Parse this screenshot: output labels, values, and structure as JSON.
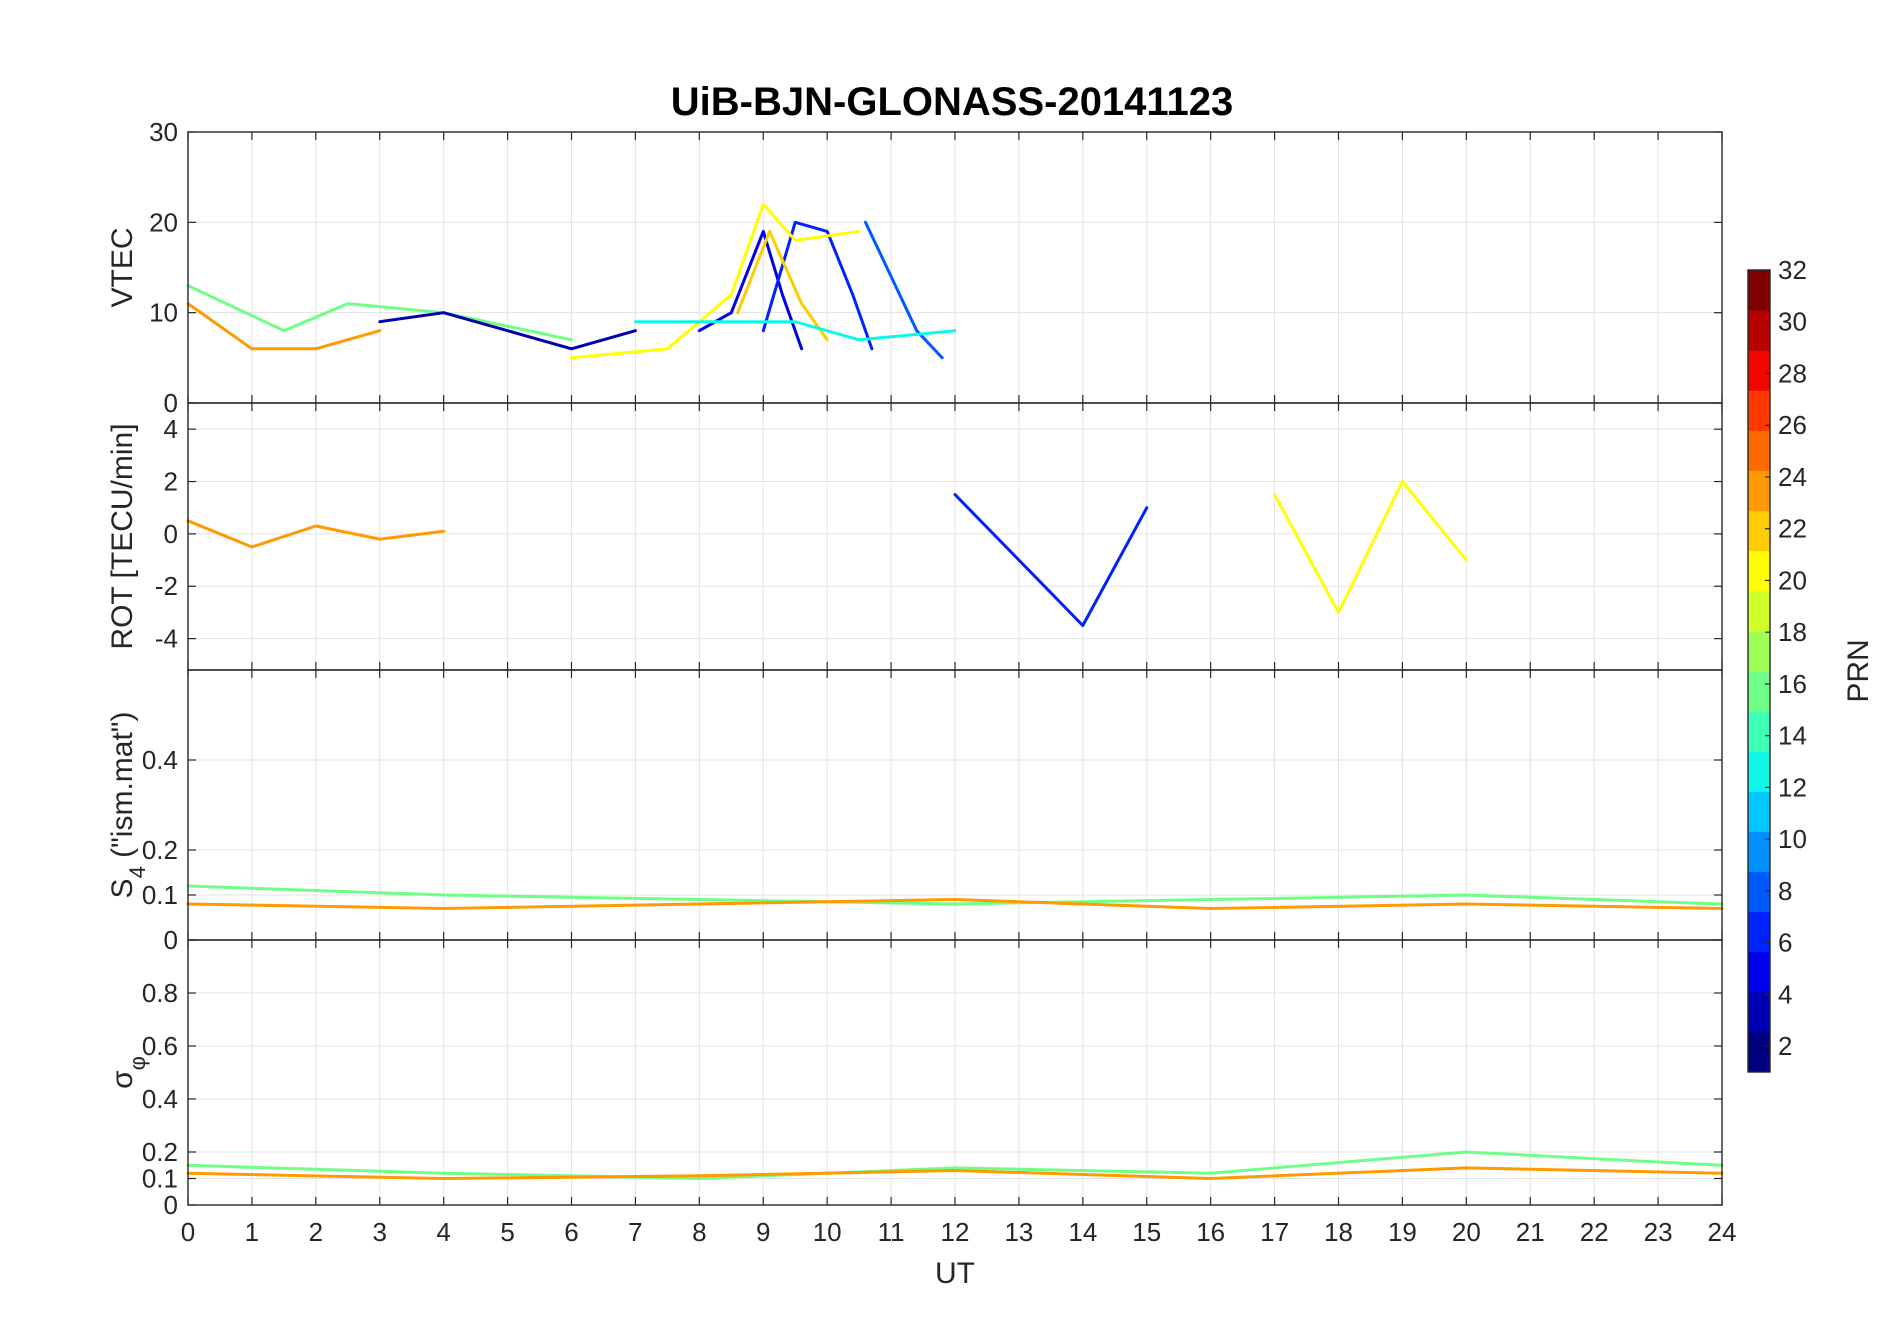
{
  "title": "UiB-BJN-GLONASS-20141123",
  "colormap": [
    "#00007f",
    "#0000b3",
    "#0000ea",
    "#0022ff",
    "#0059ff",
    "#0090ff",
    "#00c7ff",
    "#0ff8e7",
    "#3fffb7",
    "#6fff87",
    "#9fff57",
    "#cfff27",
    "#ffff00",
    "#ffcc00",
    "#ff9a00",
    "#ff6a00",
    "#ff3900",
    "#ef0700",
    "#b70000",
    "#7f0000"
  ],
  "chart_data": [
    {
      "type": "line",
      "panel": "vtec",
      "ylabel": "VTEC",
      "ylim": [
        0,
        30
      ],
      "yticks": [
        0,
        10,
        20,
        30
      ],
      "ytick_labels": [
        "0",
        "10",
        "20",
        "30"
      ],
      "xlim": [
        0,
        24
      ],
      "grid": true,
      "series": [
        {
          "prn": 4,
          "x": [
            8.0,
            8.5,
            9.0,
            9.3,
            9.6
          ],
          "y": [
            8,
            10,
            19,
            12,
            6
          ]
        },
        {
          "prn": 6,
          "x": [
            9.0,
            9.5,
            10.0,
            10.4,
            10.7
          ],
          "y": [
            8,
            20,
            19,
            12,
            6
          ]
        },
        {
          "prn": 8,
          "x": [
            10.6,
            11.0,
            11.4,
            11.8
          ],
          "y": [
            20,
            14,
            8,
            5
          ]
        },
        {
          "prn": 20,
          "x": [
            6.0,
            7.5,
            8.5,
            9.0,
            9.5,
            10.5
          ],
          "y": [
            5,
            6,
            12,
            22,
            18,
            19
          ]
        },
        {
          "prn": 22,
          "x": [
            8.6,
            9.1,
            9.6,
            10.0
          ],
          "y": [
            10,
            19,
            11,
            7
          ]
        },
        {
          "prn": 24,
          "x": [
            0.0,
            1.0,
            2.0,
            3.0
          ],
          "y": [
            11,
            6,
            6,
            8
          ]
        },
        {
          "prn": 12,
          "x": [
            7.0,
            8.5,
            9.5,
            10.5,
            12.0
          ],
          "y": [
            9,
            9,
            9,
            7,
            8
          ]
        },
        {
          "prn": 16,
          "x": [
            0.0,
            1.5,
            2.5,
            4.0,
            6.0
          ],
          "y": [
            13,
            8,
            11,
            10,
            7
          ]
        },
        {
          "prn": 2,
          "x": [
            3.0,
            4.0,
            5.0,
            6.0,
            7.0
          ],
          "y": [
            9,
            10,
            8,
            6,
            8
          ]
        }
      ]
    },
    {
      "type": "line",
      "panel": "rot",
      "ylabel": "ROT [TECU/min]",
      "ylim": [
        -5.2,
        5
      ],
      "yticks": [
        -4,
        -2,
        0,
        2,
        4
      ],
      "ytick_labels": [
        "-4",
        "-2",
        "0",
        "2",
        "4"
      ],
      "xlim": [
        0,
        24
      ],
      "grid": true,
      "series": [
        {
          "prn": 24,
          "x": [
            0.0,
            1.0,
            2.0,
            3.0,
            4.0
          ],
          "y": [
            0.5,
            -0.5,
            0.3,
            -0.2,
            0.1
          ]
        },
        {
          "prn": 6,
          "x": [
            12.0,
            13.0,
            14.0,
            15.0
          ],
          "y": [
            1.5,
            -1.0,
            -3.5,
            1.0
          ]
        },
        {
          "prn": 20,
          "x": [
            17.0,
            18.0,
            19.0,
            20.0
          ],
          "y": [
            1.5,
            -3.0,
            2.0,
            -1.0
          ]
        }
      ]
    },
    {
      "type": "line",
      "panel": "s4",
      "ylabel": "S4 (\"ism.mat\")",
      "ylabel_main": "S",
      "ylabel_sub": "4",
      "ylabel_rest": " (\"ism.mat\")",
      "ylim": [
        0,
        0.6
      ],
      "yticks": [
        0,
        0.1,
        0.2,
        0.4
      ],
      "ytick_labels": [
        "0",
        "0.1",
        "0.2",
        "0.4"
      ],
      "xlim": [
        0,
        24
      ],
      "grid": true,
      "series": [
        {
          "prn": 16,
          "x": [
            0.0,
            4.0,
            8.0,
            12.0,
            16.0,
            20.0,
            24.0
          ],
          "y": [
            0.12,
            0.1,
            0.09,
            0.08,
            0.09,
            0.1,
            0.08
          ]
        },
        {
          "prn": 24,
          "x": [
            0.0,
            4.0,
            8.0,
            12.0,
            16.0,
            20.0,
            24.0
          ],
          "y": [
            0.08,
            0.07,
            0.08,
            0.09,
            0.07,
            0.08,
            0.07
          ]
        }
      ]
    },
    {
      "type": "line",
      "panel": "sigma",
      "ylabel": "σ φ",
      "ylabel_main": "σ",
      "ylabel_sub": "φ",
      "ylim": [
        0,
        1
      ],
      "yticks": [
        0,
        0.1,
        0.2,
        0.4,
        0.6,
        0.8
      ],
      "ytick_labels": [
        "0",
        "0.1",
        "0.2",
        "0.4",
        "0.6",
        "0.8"
      ],
      "xlim": [
        0,
        24
      ],
      "xticks": [
        0,
        1,
        2,
        3,
        4,
        5,
        6,
        7,
        8,
        9,
        10,
        11,
        12,
        13,
        14,
        15,
        16,
        17,
        18,
        19,
        20,
        21,
        22,
        23,
        24
      ],
      "xtick_labels": [
        "0",
        "1",
        "2",
        "3",
        "4",
        "5",
        "6",
        "7",
        "8",
        "9",
        "10",
        "11",
        "12",
        "13",
        "14",
        "15",
        "16",
        "17",
        "18",
        "19",
        "20",
        "21",
        "22",
        "23",
        "24"
      ],
      "xlabel": "UT",
      "grid": true,
      "series": [
        {
          "prn": 16,
          "x": [
            0.0,
            4.0,
            8.0,
            12.0,
            16.0,
            20.0,
            24.0
          ],
          "y": [
            0.15,
            0.12,
            0.1,
            0.14,
            0.12,
            0.2,
            0.15
          ]
        },
        {
          "prn": 24,
          "x": [
            0.0,
            4.0,
            8.0,
            12.0,
            16.0,
            20.0,
            24.0
          ],
          "y": [
            0.12,
            0.1,
            0.11,
            0.13,
            0.1,
            0.14,
            0.12
          ]
        }
      ]
    }
  ],
  "colorbar": {
    "label": "PRN",
    "range": [
      1,
      32
    ],
    "ticks": [
      2,
      4,
      6,
      8,
      10,
      12,
      14,
      16,
      18,
      20,
      22,
      24,
      26,
      28,
      30,
      32
    ],
    "tick_labels": [
      "2",
      "4",
      "6",
      "8",
      "10",
      "12",
      "14",
      "16",
      "18",
      "20",
      "22",
      "24",
      "26",
      "28",
      "30",
      "32"
    ]
  }
}
